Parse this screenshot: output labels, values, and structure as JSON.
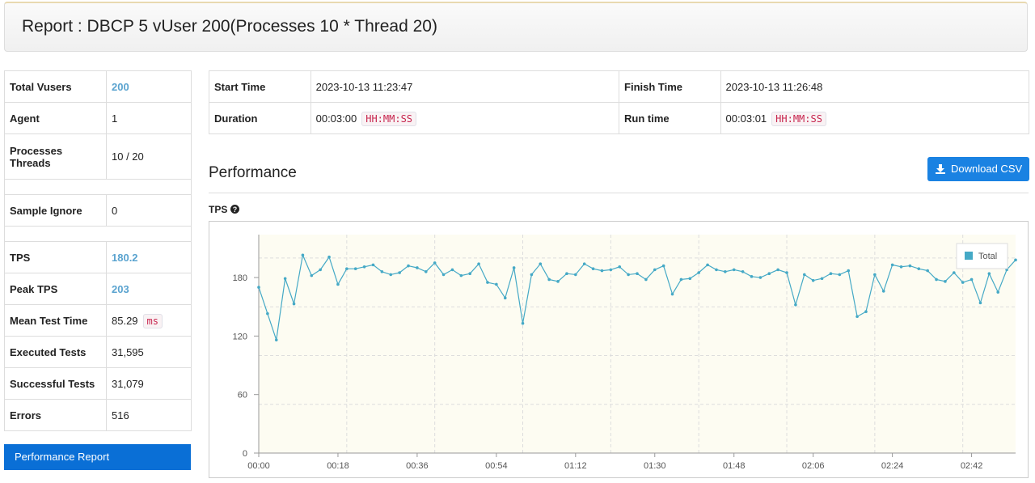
{
  "header": {
    "title": "Report : DBCP 5 vUser 200(Processes 10 * Thread 20)"
  },
  "summary": {
    "rows": [
      {
        "label": "Total Vusers",
        "value": "200",
        "emphasis": true
      },
      {
        "label": "Agent",
        "value": "1"
      },
      {
        "label": [
          "Processes",
          "Threads"
        ],
        "value": "10 / 20"
      },
      {
        "label": "Sample Ignore",
        "value": "0"
      },
      {
        "label": "TPS",
        "value": "180.2",
        "emphasis": true
      },
      {
        "label": "Peak TPS",
        "value": "203",
        "emphasis": true
      },
      {
        "label": "Mean Test Time",
        "value": "85.29",
        "unit": "ms"
      },
      {
        "label": "Executed Tests",
        "value": "31,595"
      },
      {
        "label": "Successful Tests",
        "value": "31,079"
      },
      {
        "label": "Errors",
        "value": "516"
      }
    ]
  },
  "sidebar_button": "Performance Report",
  "info": {
    "rows": [
      [
        {
          "label": "Start Time",
          "value": "2023-10-13 11:23:47"
        },
        {
          "label": "Finish Time",
          "value": "2023-10-13 11:26:48"
        }
      ],
      [
        {
          "label": "Duration",
          "value": "00:03:00",
          "unit": "HH:MM:SS"
        },
        {
          "label": "Run time",
          "value": "00:03:01",
          "unit": "HH:MM:SS"
        }
      ]
    ]
  },
  "section_title": "Performance",
  "download_button": "Download CSV",
  "chart_data": {
    "type": "line",
    "title": "TPS",
    "x": [
      0,
      2,
      4,
      6,
      8,
      10,
      12,
      14,
      16,
      18,
      20,
      22,
      24,
      26,
      28,
      30,
      32,
      34,
      36,
      38,
      40,
      42,
      44,
      46,
      48,
      50,
      52,
      54,
      56,
      58,
      60,
      62,
      64,
      66,
      68,
      70,
      72,
      74,
      76,
      78,
      80,
      82,
      84,
      86,
      88,
      90,
      92,
      94,
      96,
      98,
      100,
      102,
      104,
      106,
      108,
      110,
      112,
      114,
      116,
      118,
      120,
      122,
      124,
      126,
      128,
      130,
      132,
      134,
      136,
      138,
      140,
      142,
      144,
      146,
      148,
      150,
      152,
      154,
      156,
      158,
      160,
      162,
      164,
      166,
      168,
      170,
      172
    ],
    "series": [
      {
        "name": "Total",
        "color": "#45a9c6",
        "values": [
          170,
          143,
          116,
          179,
          153,
          203,
          182,
          188,
          201,
          173,
          189,
          189,
          191,
          193,
          186,
          183,
          185,
          192,
          190,
          186,
          195,
          183,
          188,
          182,
          184,
          194,
          175,
          173,
          159,
          190,
          133,
          183,
          194,
          178,
          176,
          184,
          183,
          194,
          189,
          187,
          188,
          191,
          183,
          184,
          178,
          188,
          192,
          163,
          178,
          179,
          185,
          193,
          188,
          186,
          188,
          186,
          181,
          180,
          184,
          188,
          185,
          152,
          183,
          177,
          179,
          184,
          183,
          187,
          140,
          145,
          183,
          166,
          193,
          191,
          192,
          189,
          187,
          178,
          176,
          185,
          175,
          178,
          154,
          184,
          165,
          188,
          198
        ]
      }
    ],
    "xlim": [
      0,
      172
    ],
    "xticks": [
      {
        "value": 0,
        "label": "00:00"
      },
      {
        "value": 18,
        "label": "00:18"
      },
      {
        "value": 36,
        "label": "00:36"
      },
      {
        "value": 54,
        "label": "00:54"
      },
      {
        "value": 72,
        "label": "01:12"
      },
      {
        "value": 90,
        "label": "01:30"
      },
      {
        "value": 108,
        "label": "01:48"
      },
      {
        "value": 126,
        "label": "02:06"
      },
      {
        "value": 144,
        "label": "02:24"
      },
      {
        "value": 162,
        "label": "02:42"
      }
    ],
    "ylim": [
      0,
      224
    ],
    "yticks": [
      0,
      60,
      120,
      180
    ],
    "xgrid": [
      20,
      40,
      60,
      80,
      100,
      120,
      140,
      160
    ],
    "ygrid": [
      50,
      100,
      150,
      200
    ],
    "legend": "top-right"
  }
}
